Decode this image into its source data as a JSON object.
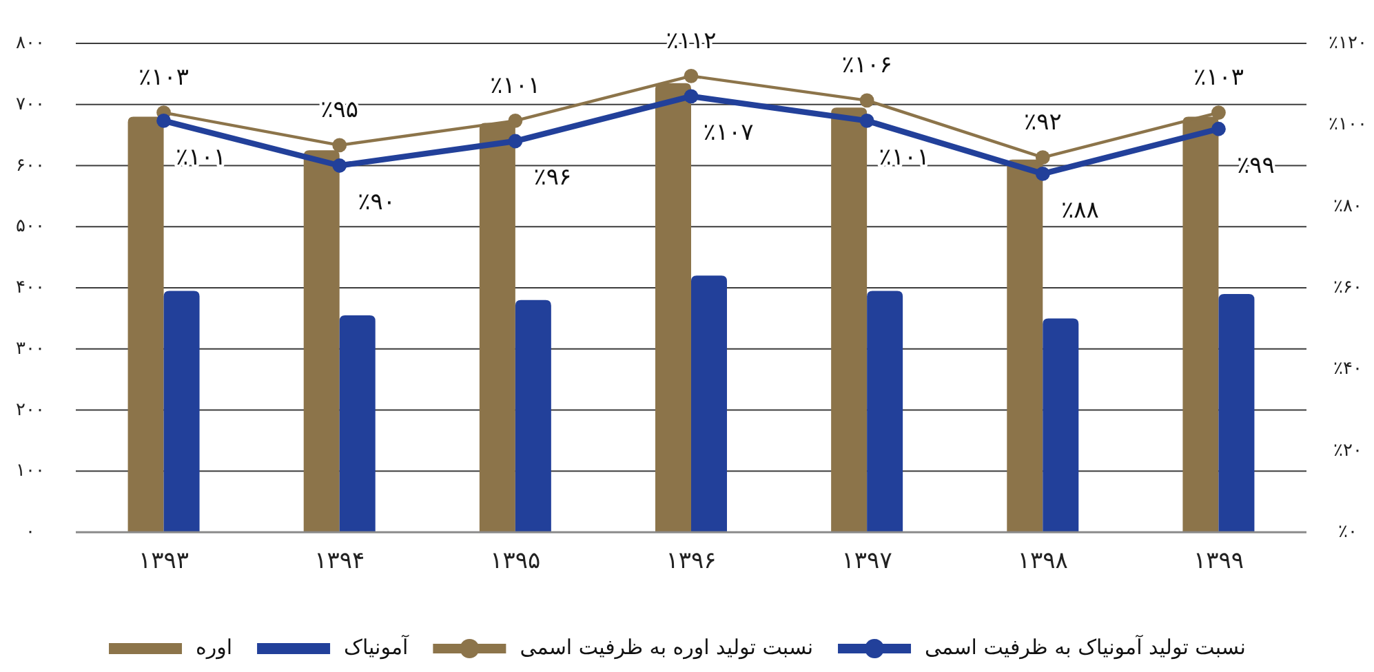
{
  "chart_data": {
    "type": "bar",
    "categories": [
      "۱۳۹۳",
      "۱۳۹۴",
      "۱۳۹۵",
      "۱۳۹۶",
      "۱۳۹۷",
      "۱۳۹۸",
      "۱۳۹۹"
    ],
    "series": [
      {
        "name": "اوره",
        "color": "#8c744a",
        "values": [
          680,
          625,
          670,
          735,
          695,
          610,
          680
        ]
      },
      {
        "name": "آمونیاک",
        "color": "#22409a",
        "values": [
          395,
          355,
          380,
          420,
          395,
          350,
          390
        ]
      },
      {
        "name": "نسبت تولید اوره به ظرفیت اسمی",
        "type": "line",
        "axis": "y2",
        "color": "#8c744a",
        "values": [
          103,
          95,
          101,
          112,
          106,
          92,
          103
        ],
        "value_labels": [
          "٪۱۰۳",
          "٪۹۵",
          "٪۱۰۱",
          "٪۱۱۲",
          "٪۱۰۶",
          "٪۹۲",
          "٪۱۰۳"
        ]
      },
      {
        "name": "نسبت تولید آمونیاک به ظرفیت اسمی",
        "type": "line",
        "axis": "y2",
        "color": "#22409a",
        "values": [
          101,
          90,
          96,
          107,
          101,
          88,
          99
        ],
        "value_labels": [
          "٪۱۰۱",
          "٪۹۰",
          "٪۹۶",
          "٪۱۰۷",
          "٪۱۰۱",
          "٪۸۸",
          "٪۹۹"
        ]
      }
    ],
    "ylim": [
      0,
      800
    ],
    "yticks": [
      {
        "value": 0,
        "label": "۰"
      },
      {
        "value": 100,
        "label": "۱۰۰"
      },
      {
        "value": 200,
        "label": "۲۰۰"
      },
      {
        "value": 300,
        "label": "۳۰۰"
      },
      {
        "value": 400,
        "label": "۴۰۰"
      },
      {
        "value": 500,
        "label": "۵۰۰"
      },
      {
        "value": 600,
        "label": "۶۰۰"
      },
      {
        "value": 700,
        "label": "۷۰۰"
      },
      {
        "value": 800,
        "label": "۸۰۰"
      }
    ],
    "y2lim": [
      0,
      120
    ],
    "y2ticks": [
      {
        "value": 0,
        "label": "٪۰"
      },
      {
        "value": 20,
        "label": "٪۲۰"
      },
      {
        "value": 40,
        "label": "٪۴۰"
      },
      {
        "value": 60,
        "label": "٪۶۰"
      },
      {
        "value": 80,
        "label": "٪۸۰"
      },
      {
        "value": 100,
        "label": "٪۱۰۰"
      },
      {
        "value": 120,
        "label": "٪۱۲۰"
      }
    ],
    "grid": "y",
    "legend": "bottom",
    "marker": "circle"
  }
}
